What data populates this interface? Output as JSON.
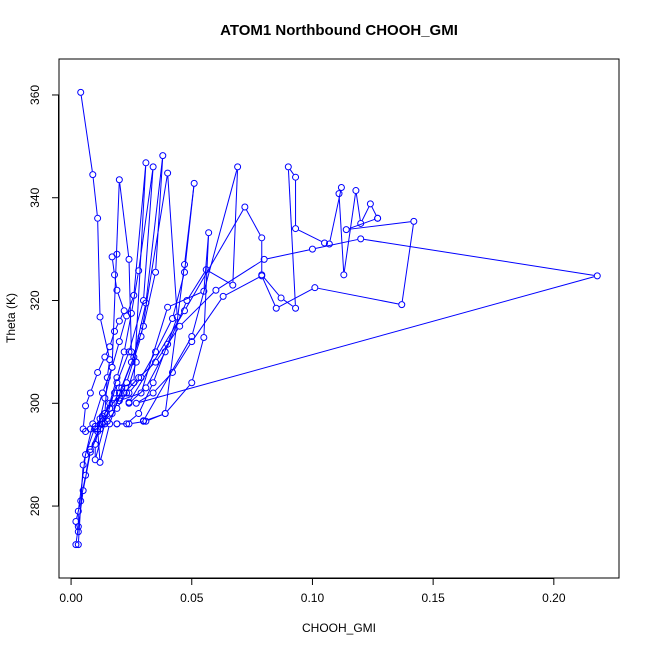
{
  "chart_data": {
    "type": "scatter",
    "title": "ATOM1 Northbound CHOOH_GMI",
    "xlabel": "CHOOH_GMI",
    "ylabel": "Theta (K)",
    "xlim": [
      -0.005,
      0.227
    ],
    "ylim": [
      266,
      367
    ],
    "xticks": [
      "0.00",
      "0.05",
      "0.10",
      "0.15",
      "0.20"
    ],
    "yticks": [
      "280",
      "300",
      "320",
      "340",
      "360"
    ],
    "grid": false,
    "legend": "none",
    "color": "#0000ff",
    "marker": "open-circle",
    "connected": true,
    "series": [
      {
        "values": [
          [
            0.004,
            360.5
          ],
          [
            0.009,
            344.5
          ],
          [
            0.011,
            336
          ],
          [
            0.012,
            316.8
          ],
          [
            0.016,
            308.5
          ],
          [
            0.015,
            305
          ],
          [
            0.014,
            298
          ],
          [
            0.012,
            295
          ],
          [
            0.008,
            290.5
          ],
          [
            0.005,
            283
          ],
          [
            0.003,
            276
          ],
          [
            0.002,
            272.5
          ],
          [
            0.003,
            272.5
          ],
          [
            0.005,
            288
          ],
          [
            0.009,
            296
          ],
          [
            0.013,
            302
          ],
          [
            0.017,
            307
          ],
          [
            0.02,
            343.5
          ],
          [
            0.024,
            328
          ],
          [
            0.025,
            310
          ],
          [
            0.027,
            308
          ],
          [
            0.023,
            302
          ],
          [
            0.019,
            299
          ],
          [
            0.015,
            296.5
          ],
          [
            0.011,
            294.5
          ],
          [
            0.008,
            291
          ],
          [
            0.006,
            286
          ],
          [
            0.004,
            281
          ],
          [
            0.002,
            277
          ],
          [
            0.003,
            275
          ],
          [
            0.003,
            279
          ],
          [
            0.006,
            290
          ],
          [
            0.01,
            295.5
          ],
          [
            0.014,
            298
          ],
          [
            0.018,
            302
          ],
          [
            0.02,
            303
          ],
          [
            0.026,
            304
          ],
          [
            0.031,
            346.8
          ],
          [
            0.026,
            321
          ],
          [
            0.023,
            317
          ],
          [
            0.02,
            312
          ],
          [
            0.017,
            307
          ],
          [
            0.014,
            301
          ],
          [
            0.012,
            297
          ],
          [
            0.01,
            292
          ],
          [
            0.01,
            289
          ],
          [
            0.014,
            296
          ],
          [
            0.019,
            304
          ],
          [
            0.024,
            310
          ],
          [
            0.03,
            320
          ],
          [
            0.034,
            346
          ],
          [
            0.028,
            325.8
          ],
          [
            0.025,
            317.5
          ],
          [
            0.022,
            310
          ],
          [
            0.019,
            305
          ],
          [
            0.016,
            300
          ],
          [
            0.013,
            297
          ],
          [
            0.011,
            295
          ],
          [
            0.012,
            288.5
          ],
          [
            0.016,
            296
          ],
          [
            0.021,
            303
          ],
          [
            0.026,
            309
          ],
          [
            0.031,
            319.5
          ],
          [
            0.038,
            348.2
          ],
          [
            0.035,
            325.5
          ],
          [
            0.03,
            315
          ],
          [
            0.025,
            308
          ],
          [
            0.02,
            302
          ],
          [
            0.016,
            299
          ],
          [
            0.013,
            296
          ],
          [
            0.012,
            296
          ],
          [
            0.017,
            298
          ],
          [
            0.023,
            304
          ],
          [
            0.029,
            313
          ],
          [
            0.04,
            344.8
          ],
          [
            0.044,
            316.8
          ],
          [
            0.04,
            311.5
          ],
          [
            0.034,
            304
          ],
          [
            0.028,
            298
          ],
          [
            0.023,
            296
          ],
          [
            0.019,
            296
          ],
          [
            0.019,
            296
          ],
          [
            0.024,
            296
          ],
          [
            0.031,
            296.5
          ],
          [
            0.039,
            298
          ],
          [
            0.047,
            327
          ],
          [
            0.051,
            342.8
          ],
          [
            0.047,
            325.5
          ],
          [
            0.042,
            316.5
          ],
          [
            0.035,
            310
          ],
          [
            0.029,
            305
          ],
          [
            0.024,
            302
          ],
          [
            0.02,
            301
          ],
          [
            0.02,
            300.5
          ],
          [
            0.029,
            302
          ],
          [
            0.04,
            318.7
          ],
          [
            0.055,
            321.8
          ],
          [
            0.057,
            333.2
          ],
          [
            0.055,
            312.8
          ],
          [
            0.05,
            304
          ],
          [
            0.039,
            298
          ],
          [
            0.03,
            296.5
          ],
          [
            0.03,
            296.6
          ],
          [
            0.05,
            313
          ],
          [
            0.069,
            346
          ],
          [
            0.067,
            323
          ],
          [
            0.056,
            326
          ],
          [
            0.048,
            320
          ],
          [
            0.039,
            310
          ],
          [
            0.031,
            303
          ],
          [
            0.024,
            300
          ],
          [
            0.024,
            300.2
          ],
          [
            0.047,
            318
          ],
          [
            0.072,
            338.2
          ],
          [
            0.079,
            332.2
          ],
          [
            0.079,
            325
          ],
          [
            0.087,
            320.5
          ],
          [
            0.093,
            318.5
          ],
          [
            0.09,
            346
          ],
          [
            0.093,
            344
          ],
          [
            0.093,
            334
          ],
          [
            0.105,
            331.2
          ],
          [
            0.107,
            331
          ],
          [
            0.112,
            342
          ],
          [
            0.111,
            340.8
          ],
          [
            0.113,
            325
          ],
          [
            0.118,
            341.4
          ],
          [
            0.12,
            335
          ],
          [
            0.124,
            338.8
          ],
          [
            0.127,
            336
          ],
          [
            0.127,
            336
          ],
          [
            0.114,
            333.8
          ],
          [
            0.142,
            335.4
          ],
          [
            0.137,
            319.2
          ],
          [
            0.101,
            322.5
          ],
          [
            0.085,
            318.5
          ],
          [
            0.079,
            324.8
          ],
          [
            0.063,
            320.8
          ],
          [
            0.05,
            312
          ],
          [
            0.042,
            306
          ],
          [
            0.034,
            302
          ],
          [
            0.027,
            300
          ],
          [
            0.218,
            324.8
          ],
          [
            0.12,
            332
          ],
          [
            0.1,
            330
          ],
          [
            0.08,
            328
          ],
          [
            0.06,
            322
          ],
          [
            0.045,
            315
          ],
          [
            0.035,
            308
          ],
          [
            0.028,
            305
          ],
          [
            0.022,
            302
          ],
          [
            0.017,
            300
          ],
          [
            0.013,
            297.5
          ],
          [
            0.01,
            295
          ],
          [
            0.008,
            295
          ],
          [
            0.006,
            294.5
          ],
          [
            0.005,
            295
          ],
          [
            0.006,
            299.5
          ],
          [
            0.008,
            302
          ],
          [
            0.011,
            306
          ],
          [
            0.014,
            309
          ],
          [
            0.016,
            311
          ],
          [
            0.018,
            314
          ],
          [
            0.02,
            316
          ],
          [
            0.022,
            318
          ],
          [
            0.019,
            322
          ],
          [
            0.018,
            325
          ],
          [
            0.017,
            328.5
          ],
          [
            0.019,
            329
          ]
        ]
      }
    ]
  }
}
